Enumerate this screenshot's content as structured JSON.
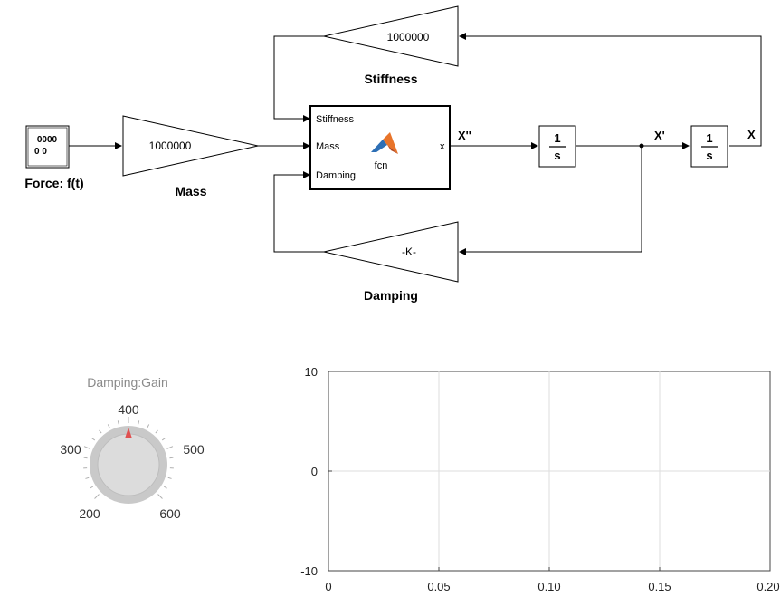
{
  "diagram": {
    "source_block": {
      "display": "0000\n0 0",
      "label": "Force: f(t)"
    },
    "mass_gain": {
      "value": "1000000",
      "label": "Mass"
    },
    "stiffness_gain": {
      "value": "1000000",
      "label": "Stiffness"
    },
    "damping_gain": {
      "value": "-K-",
      "label": "Damping"
    },
    "matlab_fcn": {
      "name": "fcn",
      "inputs": [
        "Stiffness",
        "Mass",
        "Damping"
      ],
      "output": "x"
    },
    "integrator1": {
      "num": "1",
      "den": "s"
    },
    "integrator2": {
      "num": "1",
      "den": "s"
    },
    "signals": {
      "accel": "X''",
      "velocity": "X'",
      "position": "X"
    }
  },
  "knob": {
    "title": "Damping:Gain",
    "labels": [
      "200",
      "300",
      "400",
      "500",
      "600"
    ],
    "value": 400,
    "min": 200,
    "max": 600,
    "pointer_color": "#e05050"
  },
  "chart_data": {
    "type": "line",
    "series": [],
    "xlim": [
      0,
      0.2
    ],
    "ylim": [
      -10,
      10
    ],
    "xticks": [
      "0",
      "0.05",
      "0.10",
      "0.15",
      "0.20"
    ],
    "yticks": [
      "10",
      "0",
      "-10"
    ],
    "grid": true
  }
}
